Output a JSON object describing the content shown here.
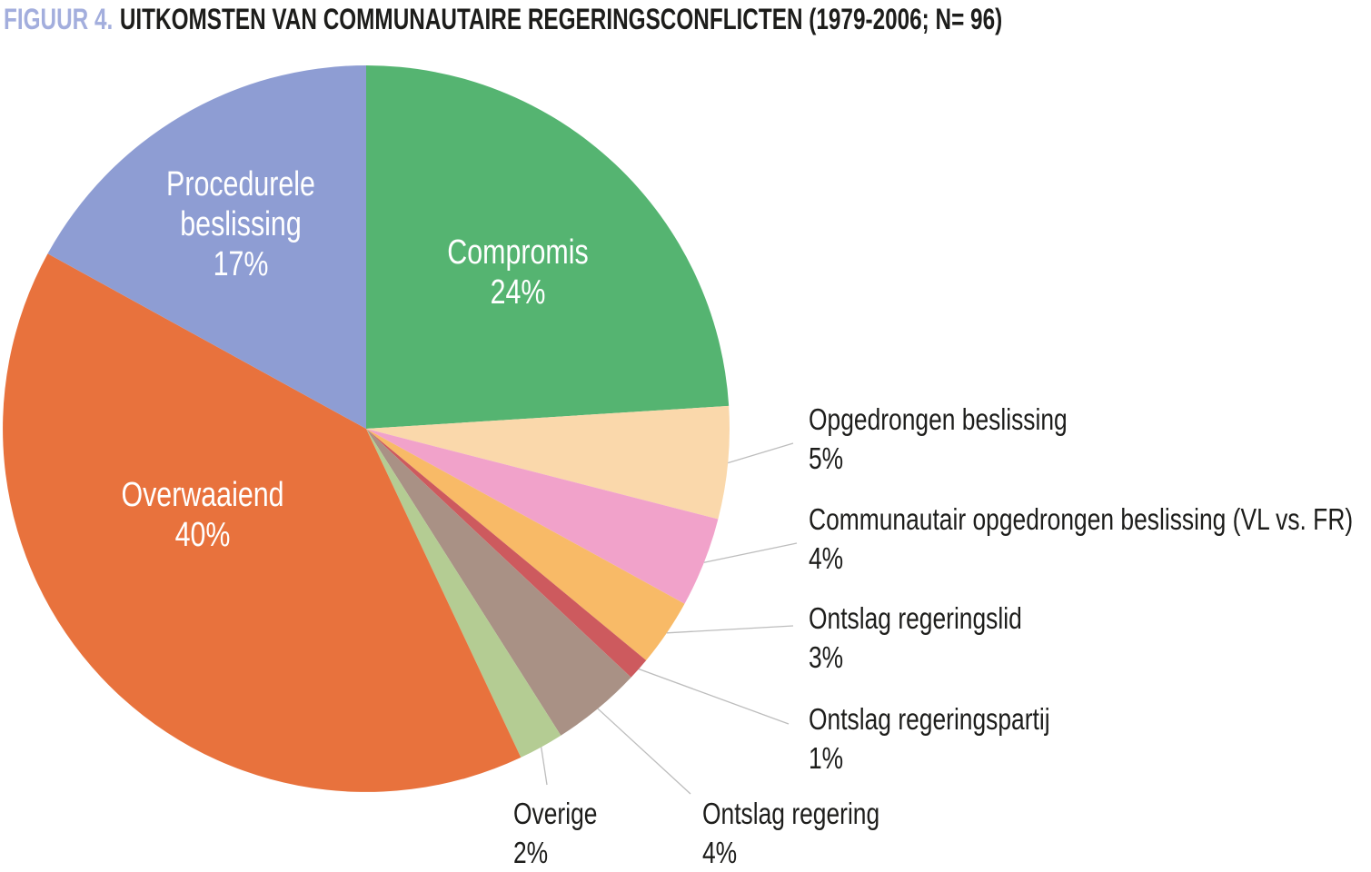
{
  "title": {
    "prefix": "FIGUUR 4.",
    "text": "UITKOMSTEN VAN COMMUNAUTAIRE REGERINGSCONFLICTEN (1979-2006; N= 96)"
  },
  "chart_data": {
    "type": "pie",
    "title": "FIGUUR 4. UITKOMSTEN VAN COMMUNAUTAIRE REGERINGSCONFLICTEN (1979-2006; N= 96)",
    "unit": "%",
    "n_total": "N= 96",
    "start_angle_deg": 0,
    "direction": "clockwise",
    "legend_position": "none",
    "slices": [
      {
        "id": "compromis",
        "label": "Compromis",
        "value": 24,
        "pct_label": "24%",
        "color": "#55b471",
        "label_placement": "inside"
      },
      {
        "id": "opgedrongen",
        "label": "Opgedrongen beslissing",
        "value": 5,
        "pct_label": "5%",
        "color": "#fad8ab",
        "label_placement": "outside"
      },
      {
        "id": "communautair",
        "label": "Communautair opgedrongen beslissing (VL vs. FR)",
        "value": 4,
        "pct_label": "4%",
        "color": "#f1a2ca",
        "label_placement": "outside"
      },
      {
        "id": "regeringslid",
        "label": "Ontslag regeringslid",
        "value": 3,
        "pct_label": "3%",
        "color": "#f8ba67",
        "label_placement": "outside"
      },
      {
        "id": "regeringspartij",
        "label": "Ontslag regeringspartij",
        "value": 1,
        "pct_label": "1%",
        "color": "#cd5a5e",
        "label_placement": "outside"
      },
      {
        "id": "regering",
        "label": "Ontslag regering",
        "value": 4,
        "pct_label": "4%",
        "color": "#a99185",
        "label_placement": "outside"
      },
      {
        "id": "overige",
        "label": "Overige",
        "value": 2,
        "pct_label": "2%",
        "color": "#b4cc93",
        "label_placement": "outside"
      },
      {
        "id": "overwaaiend",
        "label": "Overwaaiend",
        "value": 40,
        "pct_label": "40%",
        "color": "#e8723d",
        "label_placement": "inside"
      },
      {
        "id": "procedurele",
        "label": "Procedurele beslissing",
        "value": 17,
        "pct_label": "17%",
        "color": "#8e9dd3",
        "label_placement": "inside"
      }
    ]
  },
  "colors": {
    "title_prefix": "#a3aedd",
    "title_text": "#1d1d1b",
    "label_text": "#1d1d1b",
    "leader_line": "#bdbdbd",
    "background": "#ffffff"
  }
}
